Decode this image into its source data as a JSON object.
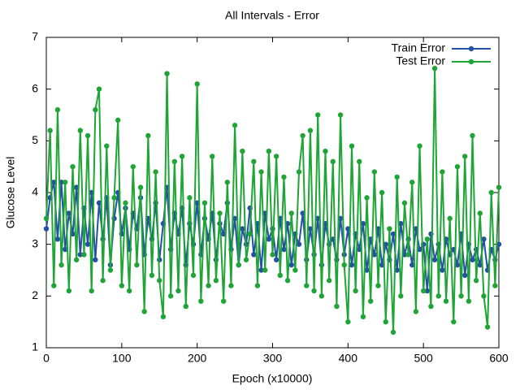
{
  "chart_data": {
    "type": "line",
    "title": "All Intervals - Error",
    "xlabel": "Epoch (x10000)",
    "ylabel": "Glucose Level",
    "x": [
      0,
      5,
      10,
      15,
      20,
      25,
      30,
      35,
      40,
      45,
      50,
      55,
      60,
      65,
      70,
      75,
      80,
      85,
      90,
      95,
      100,
      105,
      110,
      115,
      120,
      125,
      130,
      135,
      140,
      145,
      150,
      155,
      160,
      165,
      170,
      175,
      180,
      185,
      190,
      195,
      200,
      205,
      210,
      215,
      220,
      225,
      230,
      235,
      240,
      245,
      250,
      255,
      260,
      265,
      270,
      275,
      280,
      285,
      290,
      295,
      300,
      305,
      310,
      315,
      320,
      325,
      330,
      335,
      340,
      345,
      350,
      355,
      360,
      365,
      370,
      375,
      380,
      385,
      390,
      395,
      400,
      405,
      410,
      415,
      420,
      425,
      430,
      435,
      440,
      445,
      450,
      455,
      460,
      465,
      470,
      475,
      480,
      485,
      490,
      495,
      500,
      505,
      510,
      515,
      520,
      525,
      530,
      535,
      540,
      545,
      550,
      555,
      560,
      565,
      570,
      575,
      580,
      585,
      590,
      595,
      600
    ],
    "series": [
      {
        "name": "Train Error",
        "color": "#2451a6",
        "values": [
          3.3,
          3.9,
          4.2,
          3.1,
          4.2,
          2.9,
          3.6,
          3.2,
          4.1,
          2.8,
          3.7,
          3.0,
          4.0,
          2.7,
          3.8,
          3.1,
          3.9,
          2.6,
          3.5,
          4.0,
          3.2,
          3.7,
          2.9,
          3.6,
          3.3,
          3.9,
          2.8,
          3.5,
          3.1,
          3.8,
          2.7,
          3.4,
          4.1,
          2.9,
          3.6,
          3.2,
          3.7,
          2.6,
          3.4,
          3.0,
          3.8,
          2.8,
          3.5,
          3.1,
          3.6,
          2.7,
          3.4,
          3.2,
          3.8,
          2.9,
          3.5,
          2.6,
          3.3,
          3.0,
          3.7,
          2.8,
          3.4,
          2.5,
          3.6,
          3.1,
          3.3,
          2.7,
          3.5,
          2.9,
          3.4,
          2.6,
          3.2,
          3.0,
          3.6,
          2.7,
          3.3,
          2.8,
          3.5,
          2.6,
          3.4,
          3.0,
          3.1,
          2.7,
          3.5,
          2.8,
          3.3,
          2.6,
          3.2,
          2.9,
          3.4,
          2.5,
          3.1,
          2.8,
          3.3,
          2.6,
          3.0,
          2.7,
          3.2,
          2.5,
          3.4,
          2.8,
          3.1,
          2.6,
          3.3,
          2.9,
          3.0,
          2.1,
          3.2,
          2.7,
          3.0,
          2.5,
          3.1,
          2.8,
          2.9,
          2.6,
          3.2,
          2.4,
          3.0,
          2.7,
          2.9,
          2.6,
          3.1,
          2.5,
          2.9,
          2.7,
          3.0
        ]
      },
      {
        "name": "Test Error",
        "color": "#1fa535",
        "values": [
          3.5,
          5.2,
          2.2,
          5.6,
          2.6,
          4.2,
          2.1,
          4.5,
          2.7,
          5.2,
          2.8,
          5.1,
          2.1,
          5.6,
          6.0,
          2.3,
          4.9,
          2.5,
          3.9,
          5.4,
          2.2,
          3.8,
          2.1,
          4.5,
          2.6,
          4.1,
          1.7,
          5.1,
          2.4,
          4.4,
          2.3,
          1.6,
          6.3,
          2.0,
          4.6,
          2.1,
          4.7,
          1.8,
          3.9,
          2.4,
          6.1,
          1.9,
          3.8,
          2.2,
          4.7,
          2.3,
          3.6,
          1.9,
          4.2,
          2.2,
          5.3,
          2.6,
          4.8,
          2.7,
          3.2,
          4.6,
          2.2,
          4.4,
          2.5,
          4.8,
          2.8,
          4.7,
          2.4,
          4.3,
          2.3,
          3.6,
          2.5,
          4.4,
          5.1,
          2.2,
          5.2,
          2.1,
          5.5,
          2.0,
          4.8,
          2.3,
          4.6,
          1.8,
          5.5,
          2.6,
          1.5,
          4.9,
          2.1,
          4.6,
          1.6,
          3.9,
          1.9,
          4.4,
          2.2,
          4.0,
          1.5,
          3.3,
          1.3,
          4.3,
          2.0,
          3.8,
          2.8,
          4.2,
          1.7,
          4.9,
          2.1,
          3.1,
          1.8,
          6.4,
          2.0,
          4.4,
          1.9,
          3.5,
          1.5,
          4.5,
          2.0,
          4.7,
          1.9,
          5.1,
          2.3,
          3.6,
          2.0,
          1.4,
          4.0,
          2.2,
          4.1
        ]
      }
    ],
    "xlim": [
      0,
      600
    ],
    "xticks": [
      0,
      100,
      200,
      300,
      400,
      500,
      600
    ],
    "ylim": [
      1,
      7
    ],
    "yticks": [
      1,
      2,
      3,
      4,
      5,
      6,
      7
    ],
    "legend": "top right"
  }
}
